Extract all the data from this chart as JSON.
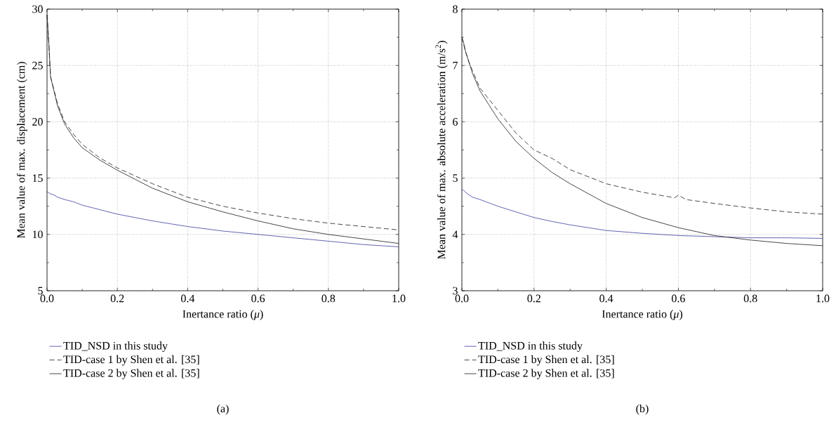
{
  "chart_data": [
    {
      "type": "line",
      "xlabel": "Inertance ratio (*μ*)",
      "ylabel": "Mean value of max. displacement (cm)",
      "x": [
        0,
        0.005,
        0.01,
        0.02,
        0.03,
        0.05,
        0.075,
        0.1,
        0.15,
        0.2,
        0.25,
        0.3,
        0.4,
        0.5,
        0.6,
        0.7,
        0.8,
        0.9,
        1.0
      ],
      "series": [
        {
          "name": "TID_NSD in this study",
          "color": "#3c3ca0",
          "line_style": "solid",
          "values": [
            13.8,
            13.7,
            13.6,
            13.5,
            13.3,
            13.1,
            12.9,
            12.6,
            12.2,
            11.8,
            11.5,
            11.2,
            10.7,
            10.3,
            10.0,
            9.7,
            9.4,
            9.1,
            8.9
          ]
        },
        {
          "name": "TID-case 1 by Shen et al. [35]",
          "color": "#1a1a1a",
          "line_style": "dashed",
          "values": [
            29.5,
            27,
            24,
            22.8,
            21.6,
            20,
            18.9,
            18.0,
            16.8,
            15.9,
            15.2,
            14.5,
            13.3,
            12.5,
            11.9,
            11.4,
            11.0,
            10.7,
            10.4
          ]
        },
        {
          "name": "TID-case 2 by Shen et al. [35]",
          "color": "#1a1a1a",
          "line_style": "solid",
          "values": [
            29.5,
            27,
            24,
            22.7,
            21.4,
            19.8,
            18.6,
            17.7,
            16.6,
            15.7,
            14.9,
            14.1,
            12.9,
            12.0,
            11.2,
            10.5,
            10.0,
            9.6,
            9.2
          ]
        }
      ],
      "xlim": [
        0,
        1
      ],
      "ylim": [
        5,
        30
      ],
      "xticks": [
        {
          "value": 0,
          "label": "0.0"
        },
        {
          "value": 0.2,
          "label": "0.2"
        },
        {
          "value": 0.4,
          "label": "0.4"
        },
        {
          "value": 0.6,
          "label": "0.6"
        },
        {
          "value": 0.8,
          "label": "0.8"
        },
        {
          "value": 1,
          "label": "1.0"
        }
      ],
      "yticks": [
        5,
        10,
        15,
        20,
        25,
        30
      ],
      "grid": true,
      "legend": "bottom",
      "marker": "none",
      "annotations": [
        "(a)"
      ]
    },
    {
      "type": "line",
      "xlabel": "Inertance ratio (*μ*)",
      "ylabel": "Mean value of max. absolute acceleration (m/s$^{2}$)",
      "x": [
        0,
        0.005,
        0.01,
        0.02,
        0.03,
        0.05,
        0.075,
        0.1,
        0.15,
        0.2,
        0.25,
        0.3,
        0.4,
        0.5,
        0.6,
        0.7,
        0.8,
        0.9,
        1.0
      ],
      "series": [
        {
          "name": "TID_NSD in this study",
          "color": "#3c3ca0",
          "line_style": "solid",
          "values": [
            4.8,
            4.78,
            4.75,
            4.7,
            4.66,
            4.62,
            4.56,
            4.5,
            4.4,
            4.3,
            4.23,
            4.17,
            4.07,
            4.02,
            3.98,
            3.96,
            3.94,
            3.94,
            3.93
          ]
        },
        {
          "name": "TID-case 1 by Shen et al. [35]",
          "color": "#1a1a1a",
          "line_style": "dashed",
          "x": [
            0,
            0.01,
            0.02,
            0.03,
            0.05,
            0.075,
            0.1,
            0.15,
            0.2,
            0.25,
            0.3,
            0.4,
            0.5,
            0.59,
            0.6,
            0.62,
            0.7,
            0.8,
            0.9,
            1.0
          ],
          "values": [
            7.5,
            7.25,
            7.05,
            6.9,
            6.6,
            6.4,
            6.2,
            5.8,
            5.5,
            5.35,
            5.15,
            4.9,
            4.75,
            4.65,
            4.7,
            4.62,
            4.55,
            4.47,
            4.4,
            4.36
          ]
        },
        {
          "name": "TID-case 2 by Shen et al. [35]",
          "color": "#1a1a1a",
          "line_style": "solid",
          "values": [
            7.5,
            7.4,
            7.25,
            7.05,
            6.85,
            6.55,
            6.3,
            6.05,
            5.65,
            5.35,
            5.1,
            4.9,
            4.55,
            4.3,
            4.12,
            3.98,
            3.9,
            3.84,
            3.8
          ]
        }
      ],
      "xlim": [
        0,
        1
      ],
      "ylim": [
        3,
        8
      ],
      "xticks": [
        {
          "value": 0,
          "label": "0.0"
        },
        {
          "value": 0.2,
          "label": "0.2"
        },
        {
          "value": 0.4,
          "label": "0.4"
        },
        {
          "value": 0.6,
          "label": "0.6"
        },
        {
          "value": 0.8,
          "label": "0.8"
        },
        {
          "value": 1,
          "label": "1.0"
        }
      ],
      "yticks": [
        3,
        4,
        5,
        6,
        7,
        8
      ],
      "grid": true,
      "legend": "bottom",
      "marker": "none",
      "annotations": [
        "(b)"
      ]
    }
  ]
}
